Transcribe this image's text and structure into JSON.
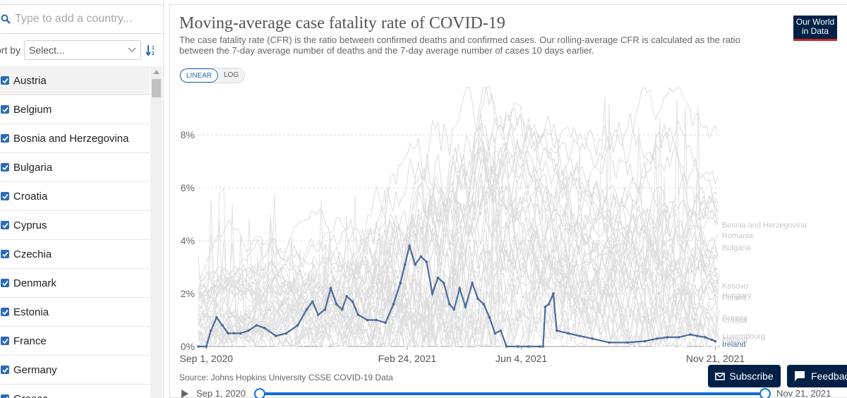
{
  "sidebar": {
    "search_placeholder": "Type to add a country...",
    "sort_label": "ort by",
    "sort_value": "Select...",
    "countries": [
      "Austria",
      "Belgium",
      "Bosnia and Herzegovina",
      "Bulgaria",
      "Croatia",
      "Cyprus",
      "Czechia",
      "Denmark",
      "Estonia",
      "France",
      "Germany",
      "Greece"
    ]
  },
  "header": {
    "title": "Moving-average case fatality rate of COVID-19",
    "subtitle": "The case fatality rate (CFR) is the ratio between confirmed deaths and confirmed cases. Our rolling-average CFR is calculated as the ratio between the 7-day average number of deaths and the 7-day average number of cases 10 days earlier.",
    "logo_line1": "Our World",
    "logo_line2": "in Data"
  },
  "scale": {
    "linear": "LINEAR",
    "log": "LOG"
  },
  "footer": {
    "source": "Source: Johns Hopkins University CSSE COVID-19 Data",
    "subscribe": "Subscribe",
    "feedback": "Feedbac"
  },
  "timeline": {
    "start": "Sep 1, 2020",
    "end": "Nov 21, 2021"
  },
  "colors": {
    "highlight": "#4c6a9c",
    "background_lines": "#dcdcdc",
    "brand": "#002147"
  },
  "chart_data": {
    "type": "line",
    "y_ticks": [
      "0%",
      "2%",
      "4%",
      "6%",
      "8%"
    ],
    "x_ticks": [
      "Sep 1, 2020",
      "Feb 24, 2021",
      "Jun 4, 2021",
      "Nov 21, 2021"
    ],
    "x_range": [
      "2020-08-25",
      "2021-11-25"
    ],
    "ylim": [
      0,
      9.5
    ],
    "highlight_series": {
      "name": "Ireland",
      "points": [
        [
          "2020-08-25",
          0.0
        ],
        [
          "2020-09-01",
          0.0
        ],
        [
          "2020-09-05",
          0.6
        ],
        [
          "2020-09-10",
          1.1
        ],
        [
          "2020-09-15",
          0.8
        ],
        [
          "2020-09-20",
          0.5
        ],
        [
          "2020-09-25",
          0.5
        ],
        [
          "2020-10-01",
          0.5
        ],
        [
          "2020-10-08",
          0.6
        ],
        [
          "2020-10-15",
          0.8
        ],
        [
          "2020-10-22",
          0.7
        ],
        [
          "2020-11-01",
          0.4
        ],
        [
          "2020-11-10",
          0.5
        ],
        [
          "2020-11-20",
          0.8
        ],
        [
          "2020-11-28",
          1.4
        ],
        [
          "2020-12-03",
          1.7
        ],
        [
          "2020-12-08",
          1.2
        ],
        [
          "2020-12-14",
          1.4
        ],
        [
          "2020-12-19",
          2.2
        ],
        [
          "2020-12-24",
          1.6
        ],
        [
          "2020-12-29",
          1.4
        ],
        [
          "2021-01-02",
          1.9
        ],
        [
          "2021-01-07",
          1.7
        ],
        [
          "2021-01-12",
          1.2
        ],
        [
          "2021-01-20",
          1.0
        ],
        [
          "2021-01-28",
          1.0
        ],
        [
          "2021-02-05",
          0.9
        ],
        [
          "2021-02-12",
          1.6
        ],
        [
          "2021-02-18",
          2.4
        ],
        [
          "2021-02-22",
          3.1
        ],
        [
          "2021-02-26",
          3.8
        ],
        [
          "2021-03-03",
          3.1
        ],
        [
          "2021-03-08",
          3.4
        ],
        [
          "2021-03-13",
          3.2
        ],
        [
          "2021-03-18",
          2.0
        ],
        [
          "2021-03-23",
          2.6
        ],
        [
          "2021-03-28",
          2.4
        ],
        [
          "2021-04-02",
          1.6
        ],
        [
          "2021-04-06",
          1.4
        ],
        [
          "2021-04-11",
          2.2
        ],
        [
          "2021-04-16",
          1.5
        ],
        [
          "2021-04-22",
          2.4
        ],
        [
          "2021-04-27",
          1.8
        ],
        [
          "2021-05-02",
          1.6
        ],
        [
          "2021-05-07",
          1.1
        ],
        [
          "2021-05-12",
          0.5
        ],
        [
          "2021-05-17",
          0.6
        ],
        [
          "2021-05-22",
          0.0
        ],
        [
          "2021-06-01",
          0.0
        ],
        [
          "2021-06-10",
          0.0
        ],
        [
          "2021-06-20",
          0.0
        ],
        [
          "2021-06-23",
          0.0
        ],
        [
          "2021-06-25",
          1.5
        ],
        [
          "2021-06-28",
          1.6
        ],
        [
          "2021-07-02",
          2.0
        ],
        [
          "2021-07-05",
          0.6
        ],
        [
          "2021-07-15",
          0.5
        ],
        [
          "2021-07-25",
          0.4
        ],
        [
          "2021-08-05",
          0.3
        ],
        [
          "2021-08-20",
          0.15
        ],
        [
          "2021-09-05",
          0.15
        ],
        [
          "2021-09-20",
          0.2
        ],
        [
          "2021-10-01",
          0.3
        ],
        [
          "2021-10-10",
          0.35
        ],
        [
          "2021-10-20",
          0.35
        ],
        [
          "2021-10-30",
          0.45
        ],
        [
          "2021-11-05",
          0.4
        ],
        [
          "2021-11-12",
          0.35
        ],
        [
          "2021-11-18",
          0.25
        ],
        [
          "2021-11-21",
          0.2
        ]
      ]
    },
    "end_labels": [
      {
        "name": "Bosnia and Herzegovina",
        "value": 4.6
      },
      {
        "name": "Romania",
        "value": 4.2
      },
      {
        "name": "Bulgaria",
        "value": 3.75
      },
      {
        "name": "Kosovo",
        "value": 2.3
      },
      {
        "name": "Hungary",
        "value": 1.95
      },
      {
        "name": "Poland",
        "value": 1.85
      },
      {
        "name": "Greece",
        "value": 1.1
      },
      {
        "name": "Croatia",
        "value": 1.0
      },
      {
        "name": "Luxembourg",
        "value": 0.4
      },
      {
        "name": "Finland",
        "value": 0.25
      },
      {
        "name": "Ireland",
        "value": 0.1
      }
    ]
  }
}
